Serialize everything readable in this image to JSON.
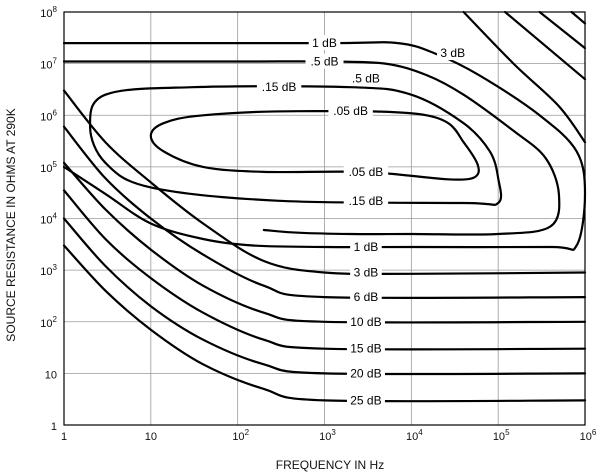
{
  "chart_data": {
    "type": "line",
    "title": "",
    "xlabel": "FREQUENCY IN Hz",
    "ylabel": "SOURCE RESISTANCE IN OHMS AT 290K",
    "xscale": "log",
    "yscale": "log",
    "xlim": [
      1,
      1000000
    ],
    "ylim": [
      1,
      100000000
    ],
    "grid": true,
    "x_tick_labels": [
      {
        "value": 1,
        "base": "1",
        "exp": ""
      },
      {
        "value": 10,
        "base": "10",
        "exp": ""
      },
      {
        "value": 100,
        "base": "10",
        "exp": "2"
      },
      {
        "value": 1000,
        "base": "10",
        "exp": "3"
      },
      {
        "value": 10000,
        "base": "10",
        "exp": "4"
      },
      {
        "value": 100000,
        "base": "10",
        "exp": "5"
      },
      {
        "value": 1000000,
        "base": "10",
        "exp": "6"
      }
    ],
    "y_tick_labels": [
      {
        "value": 1,
        "base": "1",
        "exp": ""
      },
      {
        "value": 10,
        "base": "10",
        "exp": ""
      },
      {
        "value": 100,
        "base": "10",
        "exp": "2"
      },
      {
        "value": 1000,
        "base": "10",
        "exp": "3"
      },
      {
        "value": 10000,
        "base": "10",
        "exp": "4"
      },
      {
        "value": 100000,
        "base": "10",
        "exp": "5"
      },
      {
        "value": 1000000,
        "base": "10",
        "exp": "6"
      },
      {
        "value": 10000000,
        "base": "10",
        "exp": "7"
      },
      {
        "value": 100000000,
        "base": "10",
        "exp": "8"
      }
    ],
    "series": [
      {
        "name": ".05 dB",
        "closed": true,
        "points": [
          [
            50000,
            60000
          ],
          [
            3000,
            80000
          ],
          [
            200,
            80000
          ],
          [
            40,
            100000
          ],
          [
            14,
            200000
          ],
          [
            10,
            400000
          ],
          [
            14,
            700000
          ],
          [
            40,
            1000000
          ],
          [
            500,
            1200000
          ],
          [
            15000,
            1000000
          ],
          [
            40000,
            300000
          ],
          [
            50000,
            60000
          ]
        ],
        "labels": [
          {
            "text": ".05 dB",
            "x": 2000,
            "y": 1200000
          },
          {
            "text": ".05 dB",
            "x": 3000,
            "y": 80000
          }
        ]
      },
      {
        "name": ".15 dB",
        "closed": true,
        "points": [
          [
            100000,
            20000
          ],
          [
            40000,
            20000
          ],
          [
            300,
            22000
          ],
          [
            10,
            40000
          ],
          [
            3,
            120000
          ],
          [
            2,
            600000
          ],
          [
            3,
            2500000
          ],
          [
            30,
            3500000
          ],
          [
            2000,
            3500000
          ],
          [
            10000,
            2500000
          ],
          [
            40000,
            700000
          ],
          [
            80000,
            200000
          ],
          [
            100000,
            60000
          ],
          [
            100000,
            20000
          ]
        ],
        "labels": [
          {
            "text": ".15 dB",
            "x": 300,
            "y": 3500000
          },
          {
            "text": ".15 dB",
            "x": 3000,
            "y": 22000
          }
        ]
      },
      {
        "name": ".5 dB",
        "points": [
          [
            1,
            11000000
          ],
          [
            100,
            11000000
          ],
          [
            1000,
            11000000
          ],
          [
            5000,
            10000000
          ],
          [
            15000,
            6000000
          ],
          [
            40000,
            2500000
          ],
          [
            150000,
            500000
          ],
          [
            350000,
            150000
          ],
          [
            500000,
            30000
          ],
          [
            400000,
            7000
          ],
          [
            100000,
            5000
          ],
          [
            10000,
            5000
          ],
          [
            2000,
            5000
          ],
          [
            500,
            5300
          ],
          [
            200,
            6000
          ]
        ],
        "labels": [
          {
            "text": ".5 dB",
            "x": 1000,
            "y": 11000000
          },
          {
            "text": ".5 dB",
            "x": 3000,
            "y": 5200000
          }
        ]
      },
      {
        "name": "1 dB",
        "points": [
          [
            1,
            25000000
          ],
          [
            1000,
            25000000
          ],
          [
            7000,
            25000000
          ],
          [
            20000,
            15000000
          ],
          [
            60000,
            6000000
          ],
          [
            300000,
            1000000
          ],
          [
            800000,
            200000
          ],
          [
            1000000,
            30000
          ],
          [
            800000,
            3000
          ],
          [
            400000,
            2800
          ],
          [
            10000,
            2800
          ],
          [
            1000,
            2800
          ],
          [
            150,
            3000
          ],
          [
            40,
            4000
          ],
          [
            10,
            8000
          ],
          [
            3,
            30000
          ],
          [
            1,
            100000
          ]
        ],
        "labels": [
          {
            "text": "1 dB",
            "x": 1000,
            "y": 25000000
          },
          {
            "text": "1 dB",
            "x": 3000,
            "y": 2800
          }
        ]
      },
      {
        "name": "3 dB",
        "points": [
          [
            1,
            3000000
          ],
          [
            3,
            300000
          ],
          [
            10,
            50000
          ],
          [
            40,
            8000
          ],
          [
            200,
            1500
          ],
          [
            1000,
            900
          ],
          [
            10000,
            850
          ],
          [
            1000000,
            900
          ]
        ],
        "labels": [
          {
            "text": "3 dB",
            "x": 3000,
            "y": 900
          }
        ]
      },
      {
        "name": "6 dB",
        "points": [
          [
            1,
            600000
          ],
          [
            3,
            60000
          ],
          [
            10,
            10000
          ],
          [
            40,
            2000
          ],
          [
            200,
            500
          ],
          [
            1000,
            300
          ],
          [
            1000000,
            300
          ]
        ],
        "labels": [
          {
            "text": "6 dB",
            "x": 3000,
            "y": 300
          }
        ]
      },
      {
        "name": "10 dB",
        "points": [
          [
            1,
            120000
          ],
          [
            3,
            15000
          ],
          [
            10,
            2500
          ],
          [
            40,
            500
          ],
          [
            200,
            150
          ],
          [
            1000,
            100
          ],
          [
            1000000,
            100
          ]
        ],
        "labels": [
          {
            "text": "10 dB",
            "x": 3000,
            "y": 100
          }
        ]
      },
      {
        "name": "15 dB",
        "points": [
          [
            1,
            35000
          ],
          [
            3,
            4000
          ],
          [
            10,
            700
          ],
          [
            40,
            150
          ],
          [
            200,
            45
          ],
          [
            1000,
            30
          ],
          [
            1000000,
            30
          ]
        ],
        "labels": [
          {
            "text": "15 dB",
            "x": 3000,
            "y": 30
          }
        ]
      },
      {
        "name": "20 dB",
        "points": [
          [
            1,
            10000
          ],
          [
            3,
            1200
          ],
          [
            10,
            200
          ],
          [
            40,
            45
          ],
          [
            200,
            15
          ],
          [
            1000,
            10
          ],
          [
            1000000,
            10
          ]
        ],
        "labels": [
          {
            "text": "20 dB",
            "x": 3000,
            "y": 10
          }
        ]
      },
      {
        "name": "25 dB",
        "points": [
          [
            1,
            3000
          ],
          [
            3,
            400
          ],
          [
            10,
            70
          ],
          [
            40,
            15
          ],
          [
            200,
            5
          ],
          [
            1000,
            3
          ],
          [
            1000000,
            3
          ]
        ],
        "labels": [
          {
            "text": "25 dB",
            "x": 3000,
            "y": 3
          }
        ]
      },
      {
        "name": "3 dB (upper)",
        "points": [
          [
            40000,
            100000000
          ],
          [
            150000,
            10000000
          ],
          [
            500000,
            1500000
          ],
          [
            1000000,
            300000
          ]
        ],
        "labels": [
          {
            "text": "3 dB",
            "x": 30000,
            "y": 16000000
          }
        ]
      },
      {
        "name": "",
        "points": [
          [
            120000,
            100000000
          ],
          [
            1000000,
            5000000
          ]
        ]
      },
      {
        "name": "",
        "points": [
          [
            300000,
            100000000
          ],
          [
            1000000,
            20000000
          ]
        ]
      },
      {
        "name": "",
        "points": [
          [
            700000,
            100000000
          ],
          [
            1000000,
            60000000
          ]
        ]
      }
    ]
  }
}
